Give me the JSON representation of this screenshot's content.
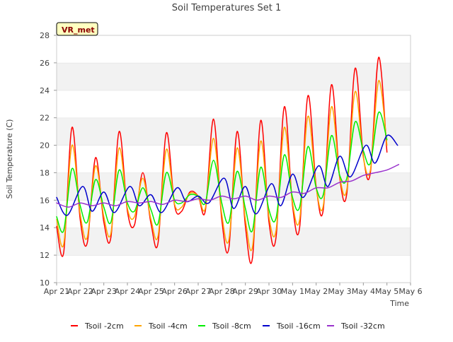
{
  "chart_data": {
    "type": "line",
    "title": "Soil Temperatures Set 1",
    "xlabel": "Time",
    "ylabel": "Soil Temperature (C)",
    "site_badge": "VR_met",
    "ylim": [
      10,
      28
    ],
    "yticks": [
      10,
      12,
      14,
      16,
      18,
      20,
      22,
      24,
      26,
      28
    ],
    "xlim": [
      "2024-04-21",
      "2024-05-06"
    ],
    "xtick_labels": [
      "Apr 21",
      "Apr 22",
      "Apr 23",
      "Apr 24",
      "Apr 25",
      "Apr 26",
      "Apr 27",
      "Apr 28",
      "Apr 29",
      "Apr 30",
      "May 1",
      "May 2",
      "May 3",
      "May 4",
      "May 5",
      "May 6"
    ],
    "grid": "horizontal bands",
    "legend_position": "bottom",
    "series": [
      {
        "name": "Tsoil -2cm",
        "color": "#ff0000",
        "x": [
          "2024-04-21",
          "2024-04-21T07:12",
          "2024-04-21T15:36",
          "2024-04-22",
          "2024-04-22T07:12",
          "2024-04-22T15:36",
          "2024-04-23",
          "2024-04-23T07:12",
          "2024-04-23T15:36",
          "2024-04-24",
          "2024-04-24T07:12",
          "2024-04-24T15:36",
          "2024-04-25",
          "2024-04-25T07:12",
          "2024-04-25T15:36",
          "2024-04-26",
          "2024-04-26T07:12",
          "2024-04-26T15:36",
          "2024-04-27",
          "2024-04-27T07:12",
          "2024-04-27T15:36",
          "2024-04-28",
          "2024-04-28T07:12",
          "2024-04-28T15:36",
          "2024-04-29",
          "2024-04-29T07:12",
          "2024-04-29T15:36",
          "2024-04-30",
          "2024-04-30T07:12",
          "2024-04-30T15:36",
          "2024-05-01",
          "2024-05-01T07:12",
          "2024-05-01T15:36",
          "2024-05-02",
          "2024-05-02T07:12",
          "2024-05-02T15:36",
          "2024-05-03",
          "2024-05-03T07:12",
          "2024-05-03T15:36",
          "2024-05-04",
          "2024-05-04T07:12",
          "2024-05-04T15:36",
          "2024-05-05",
          "2024-05-05T07:12",
          "2024-05-05T15:36",
          "2024-05-06"
        ],
        "values": [
          14.1,
          12.2,
          21.3,
          14.6,
          12.9,
          19.1,
          14.4,
          13.3,
          21.0,
          15.2,
          14.2,
          18.0,
          14.3,
          12.9,
          20.9,
          15.6,
          15.2,
          16.6,
          16.3,
          15.2,
          21.9,
          14.6,
          12.5,
          21.0,
          14.1,
          11.8,
          21.8,
          14.4,
          13.3,
          22.8,
          15.6,
          14.0,
          23.6,
          17.0,
          15.3,
          24.4,
          17.6,
          16.5,
          25.6,
          19.2,
          18.0,
          26.4,
          19.5,
          null,
          null,
          null
        ]
      },
      {
        "name": "Tsoil -4cm",
        "color": "#ffa500",
        "x": [
          "2024-04-21",
          "2024-04-21T07:12",
          "2024-04-21T15:36",
          "2024-04-22",
          "2024-04-22T07:12",
          "2024-04-22T15:36",
          "2024-04-23",
          "2024-04-23T07:12",
          "2024-04-23T15:36",
          "2024-04-24",
          "2024-04-24T07:12",
          "2024-04-24T15:36",
          "2024-04-25",
          "2024-04-25T07:12",
          "2024-04-25T15:36",
          "2024-04-26",
          "2024-04-26T07:12",
          "2024-04-26T15:36",
          "2024-04-27",
          "2024-04-27T07:12",
          "2024-04-27T15:36",
          "2024-04-28",
          "2024-04-28T07:12",
          "2024-04-28T15:36",
          "2024-04-29",
          "2024-04-29T07:12",
          "2024-04-29T15:36",
          "2024-04-30",
          "2024-04-30T07:12",
          "2024-04-30T15:36",
          "2024-05-01",
          "2024-05-01T07:12",
          "2024-05-01T15:36",
          "2024-05-02",
          "2024-05-02T07:12",
          "2024-05-02T15:36",
          "2024-05-03",
          "2024-05-03T07:12",
          "2024-05-03T15:36",
          "2024-05-04",
          "2024-05-04T07:12",
          "2024-05-04T15:36",
          "2024-05-05",
          "2024-05-05T07:12",
          "2024-05-05T15:36",
          "2024-05-06"
        ],
        "values": [
          14.6,
          12.8,
          20.0,
          15.0,
          13.3,
          18.5,
          14.8,
          13.6,
          19.8,
          15.4,
          14.8,
          17.6,
          14.6,
          13.4,
          19.7,
          15.7,
          15.5,
          16.5,
          16.3,
          15.4,
          20.5,
          15.0,
          13.1,
          19.8,
          14.6,
          12.6,
          20.3,
          14.8,
          13.8,
          21.3,
          15.8,
          14.6,
          22.1,
          16.9,
          15.6,
          22.8,
          17.7,
          16.8,
          23.9,
          19.1,
          18.2,
          24.7,
          20.0,
          null,
          null,
          null
        ]
      },
      {
        "name": "Tsoil -8cm",
        "color": "#00ee00",
        "x": [
          "2024-04-21",
          "2024-04-21T07:12",
          "2024-04-21T15:36",
          "2024-04-22",
          "2024-04-22T07:12",
          "2024-04-22T15:36",
          "2024-04-23",
          "2024-04-23T07:12",
          "2024-04-23T15:36",
          "2024-04-24",
          "2024-04-24T07:12",
          "2024-04-24T15:36",
          "2024-04-25",
          "2024-04-25T07:12",
          "2024-04-25T15:36",
          "2024-04-26",
          "2024-04-26T07:12",
          "2024-04-26T15:36",
          "2024-04-27",
          "2024-04-27T07:12",
          "2024-04-27T15:36",
          "2024-04-28",
          "2024-04-28T07:12",
          "2024-04-28T15:36",
          "2024-04-29",
          "2024-04-29T07:12",
          "2024-04-29T15:36",
          "2024-04-30",
          "2024-04-30T07:12",
          "2024-04-30T15:36",
          "2024-05-01",
          "2024-05-01T07:12",
          "2024-05-01T15:36",
          "2024-05-02",
          "2024-05-02T07:12",
          "2024-05-02T15:36",
          "2024-05-03",
          "2024-05-03T07:12",
          "2024-05-03T15:36",
          "2024-05-04",
          "2024-05-04T07:12",
          "2024-05-04T15:36",
          "2024-05-05",
          "2024-05-05T07:12",
          "2024-05-05T15:36",
          "2024-05-06"
        ],
        "values": [
          14.8,
          13.8,
          18.3,
          15.6,
          14.4,
          17.5,
          15.5,
          14.4,
          18.2,
          15.8,
          15.2,
          16.9,
          15.3,
          14.3,
          18.0,
          16.0,
          15.8,
          16.4,
          16.3,
          15.8,
          18.9,
          15.8,
          14.4,
          18.1,
          15.4,
          13.8,
          18.4,
          15.3,
          14.7,
          19.3,
          16.2,
          15.5,
          19.9,
          16.9,
          16.4,
          20.7,
          17.8,
          17.6,
          21.7,
          19.6,
          18.7,
          22.4,
          20.4,
          null,
          null,
          null
        ]
      },
      {
        "name": "Tsoil -16cm",
        "color": "#0000cc",
        "x": [
          "2024-04-21",
          "2024-04-21T10:48",
          "2024-04-22T02:24",
          "2024-04-22T12:00",
          "2024-04-23",
          "2024-04-23T10:48",
          "2024-04-24T02:24",
          "2024-04-24T12:00",
          "2024-04-25",
          "2024-04-25T10:48",
          "2024-04-26T02:24",
          "2024-04-26T12:00",
          "2024-04-27",
          "2024-04-27T10:48",
          "2024-04-28T02:24",
          "2024-04-28T12:00",
          "2024-04-29",
          "2024-04-29T10:48",
          "2024-04-30T02:24",
          "2024-04-30T12:00",
          "2024-05-01",
          "2024-05-01T10:48",
          "2024-05-02T02:24",
          "2024-05-02T12:00",
          "2024-05-03",
          "2024-05-03T10:48",
          "2024-05-04T02:24",
          "2024-05-04T12:00",
          "2024-05-05",
          "2024-05-05T10:48",
          "2024-05-06"
        ],
        "values": [
          16.2,
          14.9,
          17.0,
          15.2,
          16.6,
          15.1,
          17.0,
          15.6,
          16.4,
          15.1,
          16.9,
          15.9,
          16.3,
          15.8,
          17.6,
          15.4,
          17.0,
          15.0,
          17.2,
          15.6,
          17.9,
          16.2,
          18.5,
          17.0,
          19.2,
          17.7,
          20.0,
          18.7,
          20.7,
          20.0,
          null
        ]
      },
      {
        "name": "Tsoil -32cm",
        "color": "#9932cc",
        "x": [
          "2024-04-21",
          "2024-04-21T12:00",
          "2024-04-22",
          "2024-04-22T12:00",
          "2024-04-23",
          "2024-04-23T12:00",
          "2024-04-24",
          "2024-04-24T12:00",
          "2024-04-25",
          "2024-04-25T12:00",
          "2024-04-26",
          "2024-04-26T12:00",
          "2024-04-27",
          "2024-04-27T12:00",
          "2024-04-28",
          "2024-04-28T12:00",
          "2024-04-29",
          "2024-04-29T12:00",
          "2024-04-30",
          "2024-04-30T12:00",
          "2024-05-01",
          "2024-05-01T12:00",
          "2024-05-02",
          "2024-05-02T12:00",
          "2024-05-03",
          "2024-05-03T12:00",
          "2024-05-04",
          "2024-05-04T12:00",
          "2024-05-05",
          "2024-05-05T12:00",
          "2024-05-06"
        ],
        "values": [
          15.8,
          15.5,
          15.8,
          15.6,
          15.8,
          15.6,
          15.9,
          15.8,
          15.9,
          15.7,
          16.0,
          15.9,
          16.1,
          16.0,
          16.3,
          16.1,
          16.3,
          16.0,
          16.3,
          16.2,
          16.6,
          16.5,
          16.9,
          16.9,
          17.3,
          17.4,
          17.8,
          18.0,
          18.2,
          18.6,
          null
        ]
      }
    ]
  }
}
